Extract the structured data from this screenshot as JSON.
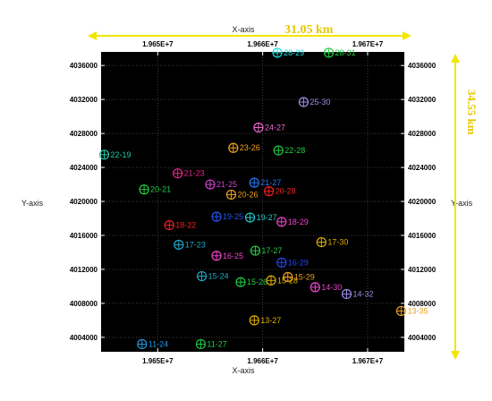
{
  "chart_data": {
    "type": "scatter",
    "xlabel": "X-axis",
    "ylabel": "Y-axis",
    "x_ticks": [
      "1.965E+7",
      "1.966E+7",
      "1.967E+7"
    ],
    "x_tick_values": [
      19650000,
      19660000,
      19670000
    ],
    "y_ticks": [
      "4036000",
      "4032000",
      "4028000",
      "4024000",
      "4020000",
      "4016000",
      "4012000",
      "4008000",
      "4004000"
    ],
    "y_tick_values": [
      4036000,
      4032000,
      4028000,
      4024000,
      4020000,
      4016000,
      4012000,
      4008000,
      4004000
    ],
    "xlim": [
      19644600,
      19673500
    ],
    "ylim": [
      4002300,
      4037600
    ],
    "grid": true,
    "width_label": "31.05 km",
    "height_label": "34.55 km",
    "marker": "circle-cross",
    "points": [
      {
        "label": "28-29",
        "x": 19661400,
        "y": 4037500,
        "color": "#19e0e0"
      },
      {
        "label": "28-31",
        "x": 19666300,
        "y": 4037500,
        "color": "#22cc44"
      },
      {
        "label": "25-30",
        "x": 19663900,
        "y": 4031700,
        "color": "#9a8ce6"
      },
      {
        "label": "24-27",
        "x": 19659600,
        "y": 4028700,
        "color": "#ee66cc"
      },
      {
        "label": "23-26",
        "x": 19657200,
        "y": 4026300,
        "color": "#f0a020"
      },
      {
        "label": "22-28",
        "x": 19661500,
        "y": 4026000,
        "color": "#22cc44"
      },
      {
        "label": "22-19",
        "x": 19644900,
        "y": 4025500,
        "color": "#22c8a8"
      },
      {
        "label": "21-23",
        "x": 19651900,
        "y": 4023300,
        "color": "#ee2288"
      },
      {
        "label": "21-25",
        "x": 19655000,
        "y": 4022000,
        "color": "#cc44cc"
      },
      {
        "label": "21-27",
        "x": 19659200,
        "y": 4022200,
        "color": "#2277ee"
      },
      {
        "label": "20-21",
        "x": 19648700,
        "y": 4021400,
        "color": "#22cc44"
      },
      {
        "label": "20-26",
        "x": 19657000,
        "y": 4020800,
        "color": "#f0a020"
      },
      {
        "label": "20-28",
        "x": 19660600,
        "y": 4021200,
        "color": "#ee2222"
      },
      {
        "label": "19-25",
        "x": 19655600,
        "y": 4018200,
        "color": "#2255ee"
      },
      {
        "label": "19-27",
        "x": 19658800,
        "y": 4018100,
        "color": "#22c8c8"
      },
      {
        "label": "18-29",
        "x": 19661800,
        "y": 4017600,
        "color": "#ee44cc"
      },
      {
        "label": "18-22",
        "x": 19651100,
        "y": 4017200,
        "color": "#ee2222"
      },
      {
        "label": "17-23",
        "x": 19652000,
        "y": 4014900,
        "color": "#22a8c8"
      },
      {
        "label": "17-27",
        "x": 19659300,
        "y": 4014200,
        "color": "#22cc44"
      },
      {
        "label": "17-30",
        "x": 19665600,
        "y": 4015200,
        "color": "#e0b000"
      },
      {
        "label": "16-25",
        "x": 19655600,
        "y": 4013600,
        "color": "#ee44cc"
      },
      {
        "label": "16-29",
        "x": 19661800,
        "y": 4012800,
        "color": "#2244ee"
      },
      {
        "label": "15-24",
        "x": 19654200,
        "y": 4011200,
        "color": "#22a8c8"
      },
      {
        "label": "15-26",
        "x": 19657900,
        "y": 4010500,
        "color": "#22cc44"
      },
      {
        "label": "15-28",
        "x": 19660800,
        "y": 4010700,
        "color": "#e0b000"
      },
      {
        "label": "15-29",
        "x": 19662400,
        "y": 4011100,
        "color": "#f0a020"
      },
      {
        "label": "14-30",
        "x": 19665000,
        "y": 4009900,
        "color": "#ee44cc"
      },
      {
        "label": "14-32",
        "x": 19668000,
        "y": 4009100,
        "color": "#9a8ce6"
      },
      {
        "label": "13-27",
        "x": 19659200,
        "y": 4006000,
        "color": "#e0b000"
      },
      {
        "label": "13-35",
        "x": 19673200,
        "y": 4007100,
        "color": "#f0a020"
      },
      {
        "label": "11-24",
        "x": 19648500,
        "y": 4003200,
        "color": "#2299e0"
      },
      {
        "label": "11-27",
        "x": 19654100,
        "y": 4003200,
        "color": "#22cc44"
      }
    ]
  }
}
